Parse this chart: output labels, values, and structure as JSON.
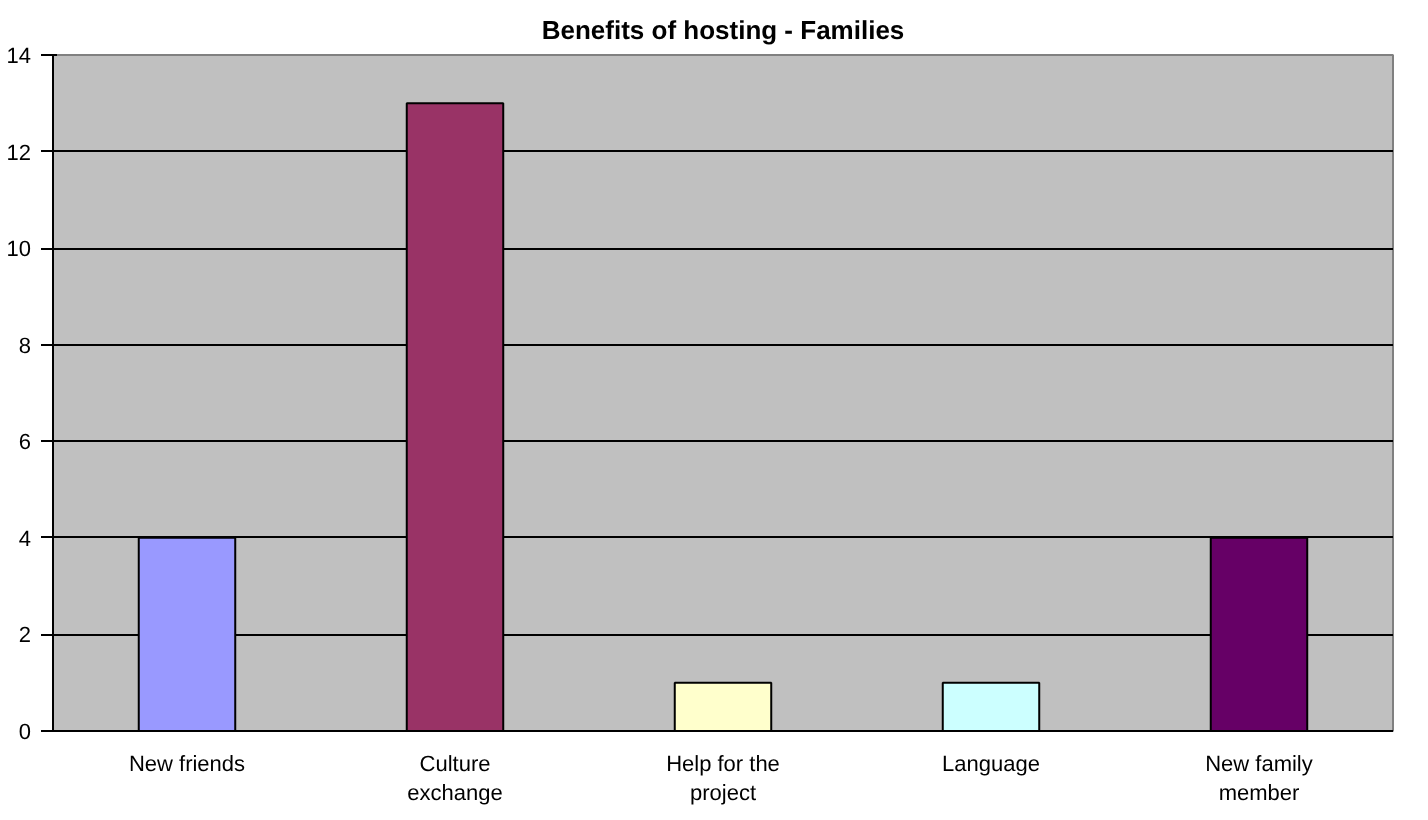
{
  "chart_data": {
    "type": "bar",
    "title": "Benefits of hosting - Families",
    "categories": [
      "New friends",
      "Culture exchange",
      "Help for the project",
      "Language",
      "New family member"
    ],
    "values": [
      4,
      13,
      1,
      1,
      4
    ],
    "colors": [
      "#9999ff",
      "#993366",
      "#ffffcc",
      "#ccffff",
      "#660066"
    ],
    "ylim": [
      0,
      14
    ],
    "yticks": [
      0,
      2,
      4,
      6,
      8,
      10,
      12,
      14
    ],
    "grid": "y"
  }
}
